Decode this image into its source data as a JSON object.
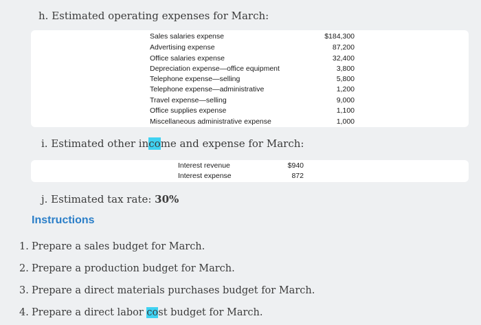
{
  "section_h": {
    "title": "h. Estimated operating expenses for March:",
    "rows": [
      {
        "label": "Sales salaries expense",
        "amount": "$184,300"
      },
      {
        "label": "Advertising expense",
        "amount": "87,200"
      },
      {
        "label": "Office salaries expense",
        "amount": "32,400"
      },
      {
        "label": "Depreciation expense—office equipment",
        "amount": "3,800"
      },
      {
        "label": "Telephone expense—selling",
        "amount": "5,800"
      },
      {
        "label": "Telephone expense—administrative",
        "amount": "1,200"
      },
      {
        "label": "Travel expense—selling",
        "amount": "9,000"
      },
      {
        "label": "Office supplies expense",
        "amount": "1,100"
      },
      {
        "label": "Miscellaneous administrative expense",
        "amount": "1,000"
      }
    ]
  },
  "section_i": {
    "title_before": "i. Estimated other in",
    "title_highlight": "co",
    "title_after": "me and expense for March:",
    "rows": [
      {
        "label": "Interest revenue",
        "amount": "$940"
      },
      {
        "label": "Interest expense",
        "amount": "872"
      }
    ]
  },
  "section_j": {
    "title": "j. Estimated tax rate: ",
    "rate": "30%"
  },
  "instructions": {
    "heading": "Instructions",
    "steps": [
      {
        "num": "1.",
        "text": "Prepare a sales budget for March."
      },
      {
        "num": "2.",
        "text": "Prepare a production budget for March."
      },
      {
        "num": "3.",
        "text": "Prepare a direct materials purchases budget for March."
      }
    ],
    "step4": {
      "num": "4.",
      "before": "Prepare a direct labor ",
      "highlight": "co",
      "after": "st budget for March."
    }
  }
}
